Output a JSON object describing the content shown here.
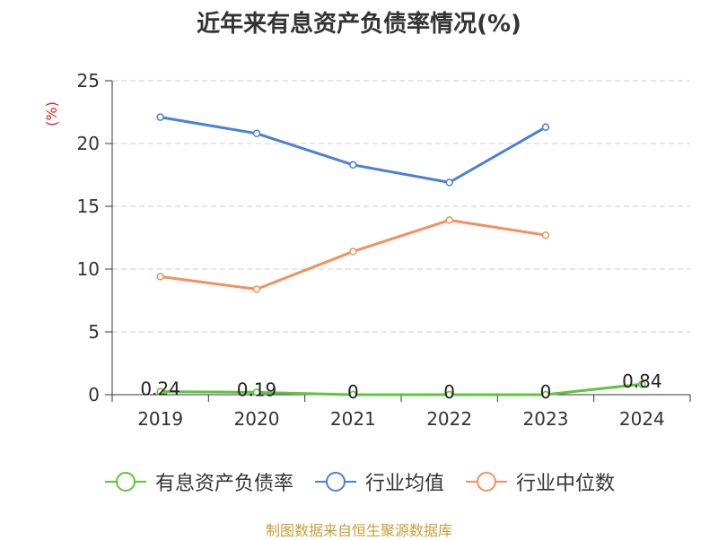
{
  "chart_data": {
    "type": "line",
    "title": "近年来有息资产负债率情况(%)",
    "ylabel": "(%)",
    "xlabel": "",
    "categories": [
      "2019",
      "2020",
      "2021",
      "2022",
      "2023",
      "2024"
    ],
    "ylim": [
      0,
      25
    ],
    "yticks": [
      "0",
      "5",
      "10",
      "15",
      "20",
      "25"
    ],
    "grid": true,
    "legend_position": "bottom",
    "series": [
      {
        "name": "有息资产负债率",
        "color": "#5cc53a",
        "values": [
          0.24,
          0.19,
          0,
          0,
          0,
          0.84
        ],
        "labels": [
          "0.24",
          "0.19",
          "0",
          "0",
          "0",
          "0.84"
        ]
      },
      {
        "name": "行业均值",
        "color": "#4a7fdb",
        "values": [
          22.1,
          20.8,
          18.3,
          16.9,
          21.3,
          null
        ]
      },
      {
        "name": "行业中位数",
        "color": "#f5905a",
        "values": [
          9.4,
          8.4,
          11.4,
          13.9,
          12.7,
          null
        ]
      }
    ]
  },
  "source": "制图数据来自恒生聚源数据库",
  "colors": {
    "ylabel": "#e02020",
    "grid": "#cccccc",
    "axis": "#333333"
  }
}
